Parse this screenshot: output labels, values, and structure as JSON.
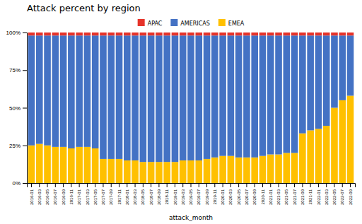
{
  "chart_data": {
    "type": "bar",
    "stacked": true,
    "title": "Attack percent by region",
    "xlabel": "attack_month",
    "categories": [
      "2016-01",
      "2016-03",
      "2016-05",
      "2016-07",
      "2016-09",
      "2016-11",
      "2017-01",
      "2017-03",
      "2017-05",
      "2017-07",
      "2017-09",
      "2017-11",
      "2018-01",
      "2018-03",
      "2018-05",
      "2018-07",
      "2018-09",
      "2018-11",
      "2019-01",
      "2019-03",
      "2019-05",
      "2019-07",
      "2019-09",
      "2019-11",
      "2020-01",
      "2020-03",
      "2020-05",
      "2020-07",
      "2020-09",
      "2020-11",
      "2021-01",
      "2021-03",
      "2021-05",
      "2021-07",
      "2021-09",
      "2021-11",
      "2022-01",
      "2022-03",
      "2022-05",
      "2022-07",
      "2022-09"
    ],
    "series": [
      {
        "name": "EMEA",
        "color": "#ffc000",
        "values": [
          25,
          26,
          25,
          24,
          24,
          23,
          24,
          24,
          23,
          16,
          16,
          16,
          15,
          15,
          14,
          14,
          14,
          14,
          14,
          15,
          15,
          15,
          16,
          17,
          18,
          18,
          17,
          17,
          17,
          18,
          19,
          19,
          20,
          20,
          33,
          35,
          36,
          38,
          50,
          55,
          58
        ]
      },
      {
        "name": "AMERICAS",
        "color": "#4472c4",
        "values": [
          73,
          72,
          73,
          74,
          74,
          75,
          74,
          74,
          75,
          82,
          82,
          82,
          83,
          83,
          84,
          84,
          84,
          84,
          84,
          83,
          83,
          83,
          82,
          81,
          80,
          80,
          81,
          81,
          81,
          80,
          79,
          79,
          78,
          78,
          65,
          63,
          62,
          60,
          48,
          43,
          40
        ]
      },
      {
        "name": "APAC",
        "color": "#e63329",
        "values": [
          2,
          2,
          2,
          2,
          2,
          2,
          2,
          2,
          2,
          2,
          2,
          2,
          2,
          2,
          2,
          2,
          2,
          2,
          2,
          2,
          2,
          2,
          2,
          2,
          2,
          2,
          2,
          2,
          2,
          2,
          2,
          2,
          2,
          2,
          2,
          2,
          2,
          2,
          2,
          2,
          2
        ]
      }
    ],
    "ylim": [
      0,
      100
    ],
    "yticks": [
      {
        "value": 0,
        "label": "0%"
      },
      {
        "value": 25,
        "label": "25%"
      },
      {
        "value": 50,
        "label": "50%"
      },
      {
        "value": 75,
        "label": "75%"
      },
      {
        "value": 100,
        "label": "100%"
      }
    ],
    "grid": false,
    "legend": "top"
  }
}
